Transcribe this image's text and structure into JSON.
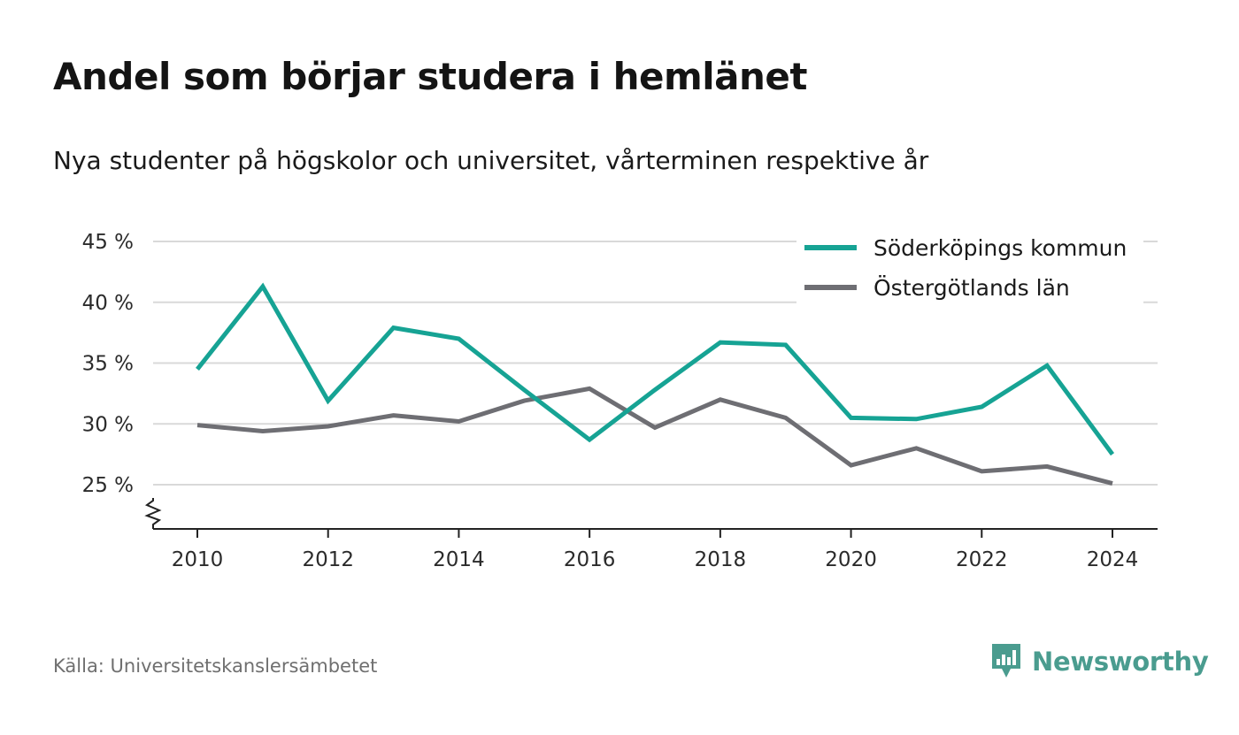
{
  "title": "Andel som börjar studera i hemlänet",
  "subtitle": "Nya studenter på högskolor och universitet, vårterminen respektive år",
  "source": "Källa: Universitetskanslersämbetet",
  "brand": {
    "name": "Newsworthy",
    "color": "#4a9c8f",
    "icon": "newsworthy-logo-icon"
  },
  "chart_data": {
    "type": "line",
    "x": [
      2010,
      2011,
      2012,
      2013,
      2014,
      2015,
      2016,
      2017,
      2018,
      2019,
      2020,
      2021,
      2022,
      2023,
      2024
    ],
    "series": [
      {
        "name": "Söderköpings kommun",
        "color": "#16a394",
        "values": [
          34.5,
          41.3,
          31.9,
          37.9,
          37.0,
          32.8,
          28.7,
          32.8,
          36.7,
          36.5,
          30.5,
          30.4,
          31.4,
          34.8,
          27.5
        ]
      },
      {
        "name": "Östergötlands län",
        "color": "#6e6e73",
        "values": [
          29.9,
          29.4,
          29.8,
          30.7,
          30.2,
          31.9,
          32.9,
          29.7,
          32.0,
          30.5,
          26.6,
          28.0,
          26.1,
          26.5,
          25.1
        ]
      }
    ],
    "y_ticks": [
      25,
      30,
      35,
      40,
      45
    ],
    "y_tick_labels": [
      "25 %",
      "30 %",
      "35 %",
      "40 %",
      "45 %"
    ],
    "x_ticks": [
      2010,
      2012,
      2014,
      2016,
      2018,
      2020,
      2022,
      2024
    ],
    "x_tick_labels": [
      "2010",
      "2012",
      "2014",
      "2016",
      "2018",
      "2020",
      "2022",
      "2024"
    ],
    "xlim": [
      2010,
      2024
    ],
    "ylim": [
      25,
      45
    ],
    "y_axis_break": true,
    "grid": true,
    "legend_position": "top-right",
    "xlabel": "",
    "ylabel": ""
  }
}
